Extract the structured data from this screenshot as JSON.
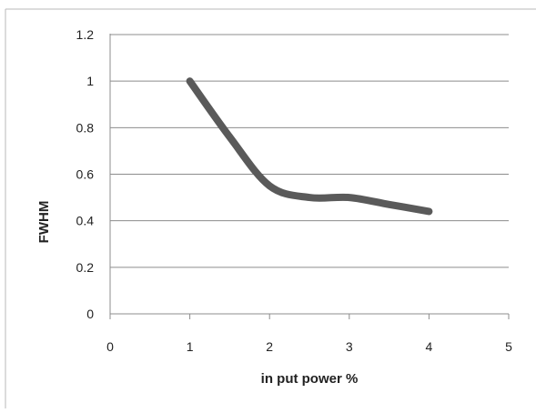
{
  "chart_data": {
    "type": "line",
    "xlabel": "in put power %",
    "ylabel": "FWHM",
    "xlim": [
      0,
      5
    ],
    "ylim": [
      0,
      1.2
    ],
    "xticks": [
      "0",
      "1",
      "2",
      "3",
      "4",
      "5"
    ],
    "yticks": [
      "0",
      "0.2",
      "0.4",
      "0.6",
      "0.8",
      "1",
      "1.2"
    ],
    "grid": "horizontal",
    "legend": "none",
    "series": [
      {
        "x": [
          1,
          1.5,
          2,
          2.5,
          3,
          3.5,
          4
        ],
        "y": [
          1.0,
          0.76,
          0.55,
          0.5,
          0.5,
          0.47,
          0.44
        ],
        "color": "#5a5a5a"
      }
    ]
  }
}
